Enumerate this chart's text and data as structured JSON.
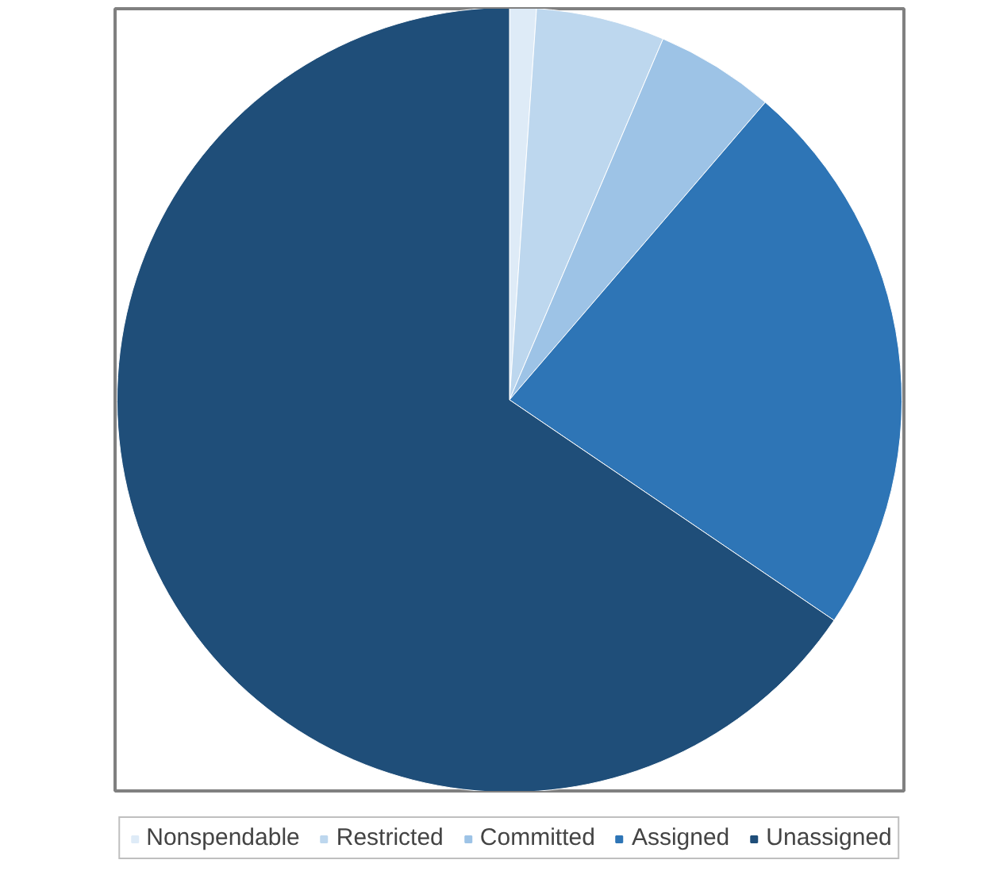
{
  "chart_data": {
    "type": "pie",
    "categories": [
      "Nonspendable",
      "Restricted",
      "Committed",
      "Assigned",
      "Unassigned"
    ],
    "values": [
      1.1,
      5.3,
      4.9,
      23.2,
      65.5
    ],
    "colors": [
      "#deebf7",
      "#bdd7ee",
      "#9dc3e6",
      "#2e75b6",
      "#1f4e79"
    ],
    "legend": "bottom"
  }
}
